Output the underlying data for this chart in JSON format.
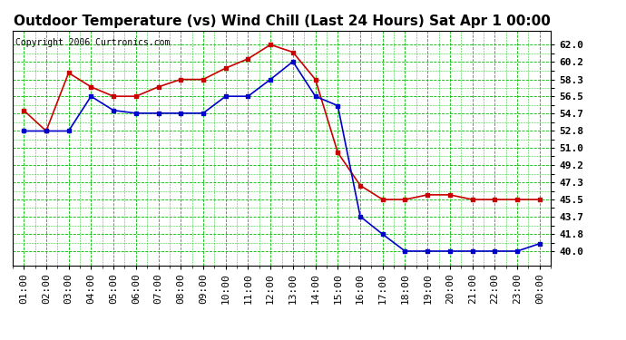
{
  "title": "Outdoor Temperature (vs) Wind Chill (Last 24 Hours) Sat Apr 1 00:00",
  "copyright": "Copyright 2006 Curtronics.com",
  "x_labels": [
    "01:00",
    "02:00",
    "03:00",
    "04:00",
    "05:00",
    "06:00",
    "07:00",
    "08:00",
    "09:00",
    "10:00",
    "11:00",
    "12:00",
    "13:00",
    "14:00",
    "15:00",
    "16:00",
    "17:00",
    "18:00",
    "19:00",
    "20:00",
    "21:00",
    "22:00",
    "23:00",
    "00:00"
  ],
  "temp_red": [
    55.0,
    52.8,
    59.0,
    57.5,
    56.5,
    56.5,
    57.5,
    58.3,
    58.3,
    59.5,
    60.5,
    62.0,
    61.2,
    58.3,
    50.5,
    47.0,
    45.5,
    45.5,
    46.0,
    46.0,
    45.5,
    45.5,
    45.5,
    45.5
  ],
  "temp_blue": [
    52.8,
    52.8,
    52.8,
    56.5,
    55.0,
    54.7,
    54.7,
    54.7,
    54.7,
    56.5,
    56.5,
    58.3,
    60.2,
    56.5,
    55.5,
    43.7,
    41.8,
    40.0,
    40.0,
    40.0,
    40.0,
    40.0,
    40.0,
    40.8
  ],
  "ylim_min": 38.5,
  "ylim_max": 63.5,
  "yticks": [
    40.0,
    41.8,
    43.7,
    45.5,
    47.3,
    49.2,
    51.0,
    52.8,
    54.7,
    56.5,
    58.3,
    60.2,
    62.0
  ],
  "red_color": "#cc0000",
  "blue_color": "#0000cc",
  "grid_color": "#00bb00",
  "bg_color": "#ffffff",
  "plot_bg_color": "#ffffff",
  "title_fontsize": 11,
  "copyright_fontsize": 7,
  "tick_fontsize": 8,
  "marker_size": 3,
  "line_width": 1.2
}
